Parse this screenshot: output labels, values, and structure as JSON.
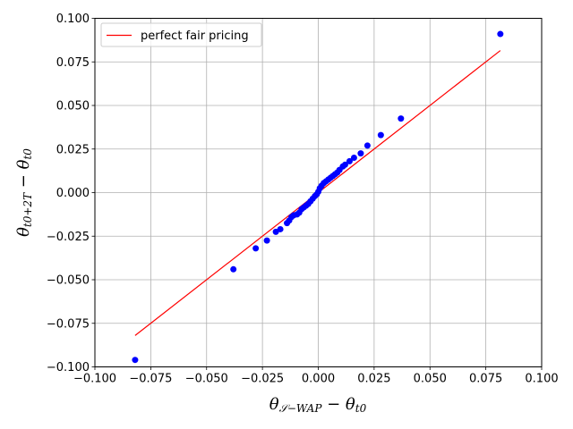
{
  "chart_data": {
    "type": "scatter",
    "xlim": [
      -0.1,
      0.1
    ],
    "ylim": [
      -0.1,
      0.1
    ],
    "x_ticks": [
      "−0.100",
      "−0.075",
      "−0.050",
      "−0.025",
      "0.000",
      "0.025",
      "0.050",
      "0.075",
      "0.100"
    ],
    "y_ticks": [
      "−0.100",
      "−0.075",
      "−0.050",
      "−0.025",
      "0.000",
      "0.025",
      "0.050",
      "0.075",
      "0.100"
    ],
    "xlabel": "θ𝒮−WAP − θt0",
    "ylabel": "θt0+2T − θt0",
    "grid": true,
    "legend_position": "top-left",
    "series": [
      {
        "name": "perfect fair pricing",
        "kind": "line",
        "color": "#ff0000",
        "x": [
          -0.082,
          0.0815
        ],
        "y": [
          -0.082,
          0.0815
        ]
      },
      {
        "kind": "scatter",
        "color": "#0000ff",
        "x": [
          -0.082,
          -0.038,
          -0.028,
          -0.023,
          -0.019,
          -0.017,
          -0.014,
          -0.013,
          -0.012,
          -0.011,
          -0.0095,
          -0.0085,
          -0.0075,
          -0.0065,
          -0.0055,
          -0.0045,
          -0.0035,
          -0.0025,
          -0.0015,
          -0.0007,
          0.0,
          0.0007,
          0.0015,
          0.0025,
          0.0035,
          0.0045,
          0.0055,
          0.0065,
          0.0075,
          0.0085,
          0.0095,
          0.011,
          0.012,
          0.014,
          0.016,
          0.019,
          0.022,
          0.028,
          0.037,
          0.0815
        ],
        "y": [
          -0.096,
          -0.044,
          -0.032,
          -0.0275,
          -0.0225,
          -0.021,
          -0.0175,
          -0.016,
          -0.014,
          -0.013,
          -0.0125,
          -0.0115,
          -0.0095,
          -0.0085,
          -0.0075,
          -0.0065,
          -0.005,
          -0.0035,
          -0.002,
          -0.001,
          0.0005,
          0.0025,
          0.004,
          0.0055,
          0.0065,
          0.0075,
          0.0085,
          0.0095,
          0.0105,
          0.0115,
          0.013,
          0.015,
          0.016,
          0.018,
          0.02,
          0.0225,
          0.027,
          0.033,
          0.0425,
          0.091
        ]
      }
    ]
  }
}
